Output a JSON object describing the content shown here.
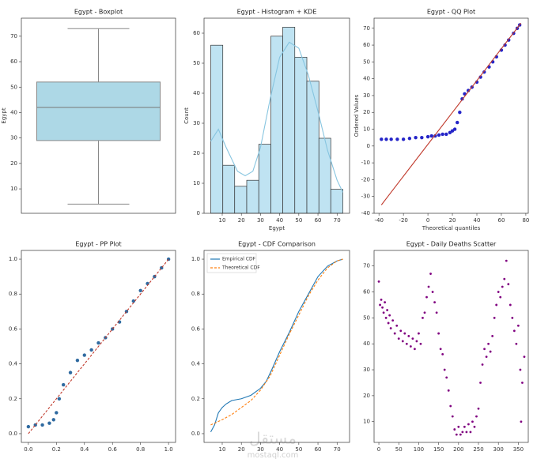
{
  "chart_data": [
    {
      "type": "box",
      "title": "Egypt - Boxplot",
      "ylabel": "Egypt",
      "box": {
        "min": 4,
        "q1": 29,
        "median": 42,
        "q3": 52,
        "max": 73
      },
      "color": "#add8e6",
      "ylim": [
        0.4,
        77.1
      ],
      "yticks": [
        10,
        20,
        30,
        40,
        50,
        60,
        70
      ]
    },
    {
      "type": "histogram",
      "title": "Egypt - Histogram + KDE",
      "xlabel": "Egypt",
      "ylabel": "Count",
      "bins": [
        4,
        10.3,
        16.5,
        22.8,
        29.1,
        35.4,
        41.6,
        47.9,
        54.2,
        60.5,
        66.7,
        73
      ],
      "counts": [
        56,
        16,
        9,
        11,
        23,
        59,
        62,
        52,
        44,
        25,
        8
      ],
      "color": "#bfe3f2",
      "kde": {
        "color": "#87c5e0",
        "x": [
          4,
          8,
          12,
          18,
          22,
          26,
          30,
          35,
          40,
          45,
          50,
          55,
          60,
          65,
          70,
          73
        ],
        "values": [
          24,
          28,
          22,
          14,
          12.5,
          14,
          22,
          38,
          52,
          57,
          55,
          46,
          34,
          21,
          11,
          7
        ]
      },
      "xlim": [
        0.5,
        76.5
      ],
      "ylim": [
        0,
        65
      ],
      "xticks": [
        10,
        20,
        30,
        40,
        50,
        60,
        70
      ],
      "yticks": [
        0,
        10,
        20,
        30,
        40,
        50,
        60
      ]
    },
    {
      "type": "scatter",
      "title": "Egypt - QQ Plot",
      "xlabel": "Theoretical quantiles",
      "ylabel": "Ordered Values",
      "series": [
        {
          "kind": "points",
          "color": "#2424c8",
          "x": [
            -38,
            -34,
            -30,
            -25,
            -20,
            -15,
            -10,
            -5,
            0,
            3,
            6,
            9,
            12,
            15,
            18,
            20,
            22,
            24,
            26,
            28,
            30,
            33,
            36,
            40,
            43,
            46,
            50,
            53,
            56,
            60,
            63,
            66,
            70,
            73,
            75
          ],
          "values": [
            4,
            4,
            4,
            4,
            4,
            4.5,
            5,
            5,
            5.5,
            6,
            6,
            6.5,
            7,
            7,
            8,
            9,
            10,
            14,
            20,
            28,
            31,
            33,
            35,
            38,
            41,
            44,
            47,
            50,
            53,
            57,
            60,
            63,
            67,
            70,
            72
          ]
        },
        {
          "kind": "line",
          "color": "#c0392b",
          "x": [
            -38,
            76
          ],
          "values": [
            -35,
            73
          ]
        }
      ],
      "xlim": [
        -44,
        82
      ],
      "ylim": [
        -40,
        76
      ],
      "xticks": [
        -40,
        -20,
        0,
        20,
        40,
        60,
        80
      ],
      "yticks": [
        -40,
        -30,
        -20,
        -10,
        0,
        10,
        20,
        30,
        40,
        50,
        60,
        70
      ]
    },
    {
      "type": "scatter",
      "title": "Egypt - PP Plot",
      "series": [
        {
          "kind": "points",
          "color": "#2f6aa0",
          "x": [
            0,
            0.05,
            0.1,
            0.15,
            0.18,
            0.2,
            0.22,
            0.25,
            0.3,
            0.35,
            0.4,
            0.45,
            0.5,
            0.55,
            0.6,
            0.65,
            0.7,
            0.75,
            0.8,
            0.85,
            0.9,
            0.95,
            1
          ],
          "values": [
            0.04,
            0.05,
            0.05,
            0.06,
            0.08,
            0.12,
            0.2,
            0.28,
            0.35,
            0.42,
            0.45,
            0.48,
            0.52,
            0.55,
            0.6,
            0.64,
            0.7,
            0.76,
            0.82,
            0.86,
            0.9,
            0.95,
            1
          ]
        },
        {
          "kind": "dashed",
          "color": "#c0392b",
          "x": [
            0,
            1
          ],
          "values": [
            0,
            1
          ]
        }
      ],
      "xlim": [
        -0.05,
        1.05
      ],
      "ylim": [
        -0.05,
        1.05
      ],
      "xticks": [
        {
          "value": 0,
          "label": "0.0"
        },
        0.2,
        0.4,
        0.6,
        0.8,
        {
          "value": 1,
          "label": "1.0"
        }
      ],
      "yticks": [
        {
          "value": 0,
          "label": "0.0"
        },
        0.2,
        0.4,
        0.6,
        0.8,
        {
          "value": 1,
          "label": "1.0"
        }
      ]
    },
    {
      "type": "line",
      "title": "Egypt - CDF Comparison",
      "series": [
        {
          "name": "Empirical CDF",
          "kind": "line",
          "color": "#1f77b4",
          "x": [
            4,
            6,
            8,
            10,
            12,
            15,
            20,
            25,
            30,
            33,
            36,
            40,
            45,
            50,
            55,
            60,
            65,
            70,
            73
          ],
          "values": [
            0.01,
            0.05,
            0.12,
            0.15,
            0.17,
            0.19,
            0.2,
            0.22,
            0.26,
            0.3,
            0.37,
            0.47,
            0.58,
            0.7,
            0.8,
            0.9,
            0.96,
            0.99,
            1
          ]
        },
        {
          "name": "Theoretical CDF",
          "kind": "dashed",
          "color": "#ff7f0e",
          "x": [
            4,
            10,
            15,
            20,
            25,
            30,
            35,
            40,
            45,
            50,
            55,
            60,
            65,
            70,
            73
          ],
          "values": [
            0.05,
            0.08,
            0.11,
            0.15,
            0.19,
            0.25,
            0.33,
            0.45,
            0.57,
            0.68,
            0.79,
            0.88,
            0.95,
            0.99,
            1
          ]
        }
      ],
      "legend": "upper left",
      "xlim": [
        0.5,
        76.5
      ],
      "ylim": [
        -0.05,
        1.05
      ],
      "xticks": [
        10,
        20,
        30,
        40,
        50,
        60,
        70
      ],
      "yticks": [
        {
          "value": 0,
          "label": "0.0"
        },
        0.2,
        0.4,
        0.6,
        0.8,
        {
          "value": 1,
          "label": "1.0"
        }
      ]
    },
    {
      "type": "scatter",
      "title": "Egypt - Daily Deaths Scatter",
      "series": [
        {
          "kind": "points",
          "color": "#800080",
          "x": [
            0,
            3,
            6,
            9,
            12,
            15,
            18,
            21,
            24,
            27,
            30,
            35,
            40,
            45,
            50,
            55,
            60,
            65,
            70,
            75,
            80,
            85,
            90,
            95,
            100,
            105,
            110,
            115,
            120,
            125,
            130,
            135,
            140,
            145,
            150,
            155,
            160,
            165,
            170,
            175,
            180,
            185,
            190,
            195,
            200,
            205,
            210,
            215,
            220,
            225,
            230,
            235,
            240,
            245,
            250,
            255,
            260,
            265,
            270,
            275,
            280,
            285,
            290,
            295,
            300,
            305,
            310,
            315,
            320,
            325,
            330,
            335,
            340,
            345,
            350,
            355,
            357,
            360,
            365
          ],
          "values": [
            64,
            55,
            57,
            54,
            52,
            56,
            50,
            53,
            48,
            51,
            46,
            49,
            44,
            47,
            42,
            45,
            41,
            44,
            40,
            43,
            39,
            42,
            38,
            41,
            44,
            40,
            50,
            52,
            58,
            62,
            67,
            60,
            56,
            52,
            44,
            38,
            36,
            30,
            27,
            22,
            16,
            12,
            7,
            5,
            8,
            5,
            6,
            8,
            6,
            9,
            6,
            10,
            8,
            12,
            15,
            25,
            32,
            38,
            35,
            40,
            37,
            43,
            50,
            55,
            60,
            58,
            62,
            65,
            72,
            63,
            55,
            50,
            45,
            40,
            47,
            30,
            10,
            25,
            35
          ]
        }
      ],
      "xlim": [
        -12,
        375
      ],
      "ylim": [
        2,
        76
      ],
      "xticks": [
        0,
        50,
        100,
        150,
        200,
        250,
        300,
        350
      ],
      "yticks": [
        10,
        20,
        30,
        40,
        50,
        60,
        70
      ]
    }
  ],
  "watermark": {
    "arabic": "مستقل",
    "latin": "mostaql.com"
  }
}
